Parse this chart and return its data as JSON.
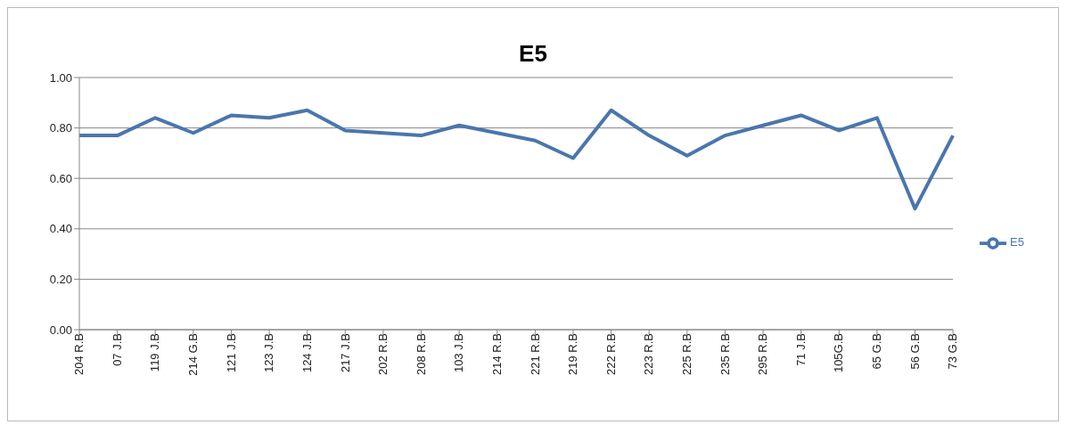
{
  "chart_data": {
    "type": "line",
    "title": "E5",
    "categories": [
      "204 R.B",
      "07 J.B",
      "119 J.B",
      "214 G.B",
      "121 J.B",
      "123 J.B",
      "124 J.B",
      "217 J.B",
      "202 R.B",
      "208 R.B",
      "103 J.B",
      "214 R.B",
      "221 R.B",
      "219 R.B",
      "222 R.B",
      "223 R.B",
      "225 R.B",
      "235 R.B",
      "295 R.B",
      "71 J.B",
      "105G.B",
      "65 G.B",
      "56 G.B",
      "73 G.B"
    ],
    "series": [
      {
        "name": "E5",
        "color": "#4a76ad",
        "values": [
          0.77,
          0.77,
          0.84,
          0.78,
          0.85,
          0.84,
          0.87,
          0.79,
          0.78,
          0.77,
          0.81,
          0.78,
          0.75,
          0.68,
          0.87,
          0.77,
          0.69,
          0.77,
          0.81,
          0.85,
          0.79,
          0.84,
          0.48,
          0.77
        ]
      }
    ],
    "ylim": [
      0,
      1
    ],
    "yticks": [
      {
        "value": 0,
        "label": "0.00"
      },
      {
        "value": 0.2,
        "label": "0.20"
      },
      {
        "value": 0.4,
        "label": "0.40"
      },
      {
        "value": 0.6,
        "label": "0.60"
      },
      {
        "value": 0.8,
        "label": "0.80"
      },
      {
        "value": 1,
        "label": "1.00"
      }
    ],
    "grid": "y",
    "legend": "right",
    "marker": "none",
    "line_style": "solid"
  }
}
